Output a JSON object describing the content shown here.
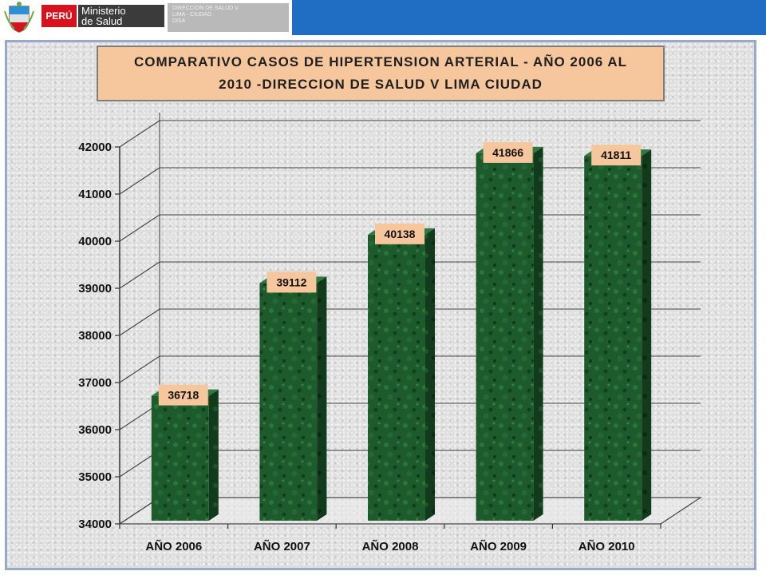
{
  "header": {
    "country_tag": "PERÚ",
    "ministry_line1": "Ministerio",
    "ministry_line2": "de Salud",
    "directorate_line1": "DIRECCION DE SALUD V",
    "directorate_line2": "LIMA - CIUDAD",
    "directorate_line3": "DISA",
    "brand_red": "#d6121f",
    "brand_blue": "#1f6ec4"
  },
  "chart_data": {
    "type": "bar",
    "title": "COMPARATIVO CASOS DE HIPERTENSION ARTERIAL - AÑO 2006 AL 2010 -DIRECCION DE SALUD V LIMA CIUDAD",
    "categories": [
      "AÑO 2006",
      "AÑO 2007",
      "AÑO 2008",
      "AÑO 2009",
      "AÑO 2010"
    ],
    "values": [
      36718,
      39112,
      40138,
      41866,
      41811
    ],
    "data_labels": [
      "36718",
      "39112",
      "40138",
      "41866",
      "41811"
    ],
    "yticks": [
      "34000",
      "35000",
      "36000",
      "37000",
      "38000",
      "39000",
      "40000",
      "41000",
      "42000"
    ],
    "ylim": [
      34000,
      42000
    ],
    "xlabel": "",
    "ylabel": "",
    "grid": true,
    "bar_color": "#1f5a2e",
    "label_box_color": "#f6c69c",
    "style": "3d"
  }
}
